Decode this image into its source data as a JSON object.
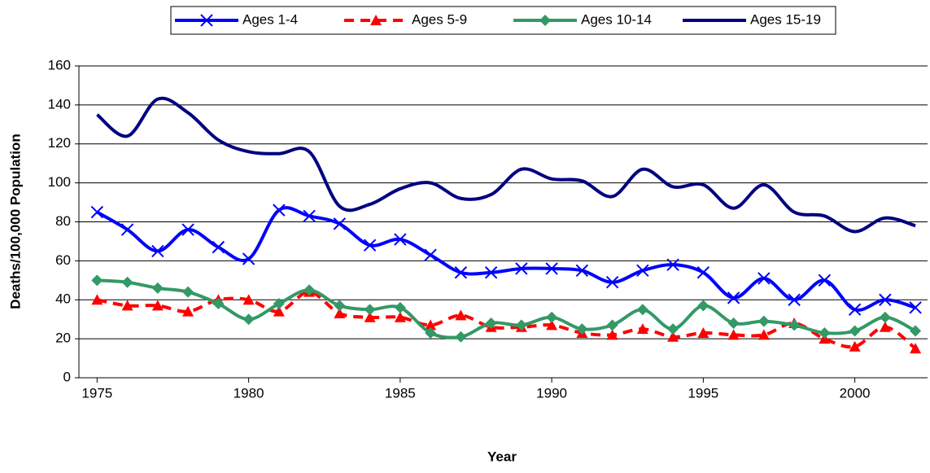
{
  "chart_data": {
    "type": "line",
    "x_label": "Year",
    "y_label": "Deaths/100,000 Population",
    "x": [
      1975,
      1976,
      1977,
      1978,
      1979,
      1980,
      1981,
      1982,
      1983,
      1984,
      1985,
      1986,
      1987,
      1988,
      1989,
      1990,
      1991,
      1992,
      1993,
      1994,
      1995,
      1996,
      1997,
      1998,
      1999,
      2000,
      2001,
      2002
    ],
    "series": [
      {
        "name": "Ages 1-4",
        "color": "#0000ff",
        "marker": "x",
        "dash": false,
        "values": [
          85,
          76,
          65,
          76,
          67,
          61,
          86,
          83,
          79,
          68,
          71,
          63,
          54,
          54,
          56,
          56,
          55,
          49,
          55,
          58,
          54,
          41,
          51,
          40,
          50,
          35,
          40,
          36
        ]
      },
      {
        "name": "Ages 5-9",
        "color": "#ff0000",
        "marker": "triangle",
        "dash": true,
        "values": [
          40,
          37,
          37,
          34,
          40,
          40,
          34,
          44,
          33,
          31,
          31,
          27,
          32,
          26,
          26,
          27,
          23,
          22,
          25,
          21,
          23,
          22,
          22,
          28,
          20,
          16,
          26,
          15
        ]
      },
      {
        "name": "Ages 10-14",
        "color": "#339966",
        "marker": "diamond",
        "dash": false,
        "values": [
          50,
          49,
          46,
          44,
          38,
          30,
          38,
          45,
          37,
          35,
          36,
          23,
          21,
          28,
          27,
          31,
          25,
          27,
          35,
          25,
          37,
          28,
          29,
          27,
          23,
          24,
          31,
          24
        ]
      },
      {
        "name": "Ages 15-19",
        "color": "#000080",
        "marker": "none",
        "dash": false,
        "values": [
          135,
          124,
          143,
          136,
          122,
          116,
          115,
          116,
          88,
          89,
          97,
          100,
          92,
          94,
          107,
          102,
          101,
          93,
          107,
          98,
          99,
          87,
          99,
          85,
          83,
          75,
          82,
          78
        ]
      }
    ],
    "xlim": [
      1974.4,
      2002.4
    ],
    "xticks": [
      1975,
      1980,
      1985,
      1990,
      1995,
      2000
    ],
    "ylim": [
      0,
      160
    ],
    "yticks": [
      0,
      20,
      40,
      60,
      80,
      100,
      120,
      140,
      160
    ],
    "grid": true,
    "legend": "top",
    "smooth": true
  }
}
